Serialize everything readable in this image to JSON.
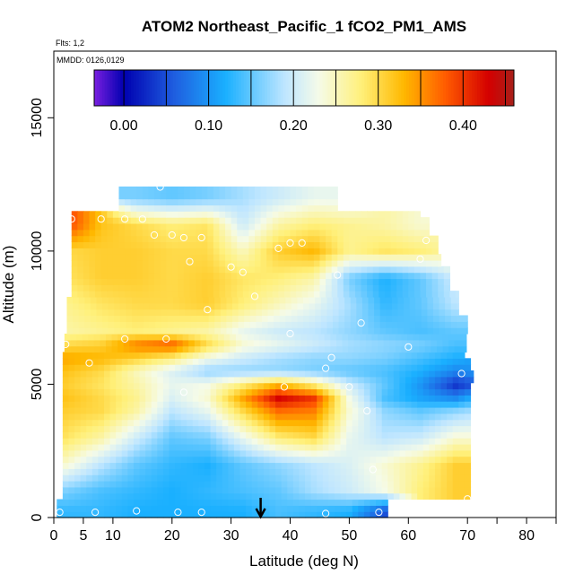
{
  "chart_data": {
    "type": "heatmap",
    "title": "ATOM2 Northeast_Pacific_1 fCO2_PM1_AMS",
    "subtitle_flights": "Flts: 1,2",
    "subtitle_dates": "MMDD: 0126,0129",
    "xlabel": "Latitude (deg N)",
    "ylabel": "Altitude (m)",
    "xlim": [
      0,
      85
    ],
    "ylim": [
      0,
      17500
    ],
    "x_ticks": [
      0,
      5,
      10,
      20,
      30,
      40,
      50,
      60,
      70,
      80
    ],
    "x_minor_ticks": [
      75,
      85
    ],
    "y_ticks": [
      0,
      5000,
      10000,
      15000
    ],
    "colorbar": {
      "min": -0.035,
      "max": 0.46,
      "ticks": [
        0.0,
        0.1,
        0.2,
        0.3,
        0.4
      ],
      "tick_labels": [
        "0.00",
        "0.10",
        "0.20",
        "0.30",
        "0.40"
      ],
      "colors": [
        "#7a1fe0",
        "#0000b0",
        "#1f5fe0",
        "#1ab0ff",
        "#bfe6ff",
        "#f5fbe8",
        "#fff07a",
        "#ffb800",
        "#ff5a00",
        "#d40000",
        "#a8201a"
      ],
      "stops": [
        -0.035,
        0.0,
        0.06,
        0.12,
        0.19,
        0.23,
        0.28,
        0.33,
        0.38,
        0.43,
        0.46
      ]
    },
    "x_nodes": [
      2,
      8,
      14,
      20,
      26,
      32,
      38,
      44,
      50,
      56,
      62,
      68,
      71
    ],
    "alt_nodes": [
      250,
      1000,
      2000,
      3000,
      4000,
      4500,
      5000,
      5500,
      6000,
      6500,
      7000,
      8000,
      9000,
      10000,
      11000,
      12000
    ],
    "values": [
      [
        0.13,
        0.13,
        0.12,
        0.12,
        0.12,
        0.12,
        0.14,
        0.13,
        0.12,
        0.05,
        null,
        null,
        null
      ],
      [
        0.16,
        0.14,
        0.13,
        0.12,
        0.13,
        0.14,
        0.15,
        0.18,
        0.2,
        0.23,
        0.28,
        0.31,
        0.31
      ],
      [
        0.24,
        0.19,
        0.15,
        0.13,
        0.12,
        0.15,
        0.17,
        0.19,
        0.21,
        0.24,
        0.27,
        0.31,
        0.31
      ],
      [
        0.29,
        0.26,
        0.2,
        0.15,
        0.16,
        0.22,
        0.28,
        0.3,
        0.22,
        0.19,
        0.2,
        0.24,
        0.24
      ],
      [
        0.31,
        0.3,
        0.26,
        0.19,
        0.22,
        0.3,
        0.37,
        0.36,
        0.24,
        0.17,
        0.15,
        0.17,
        0.18
      ],
      [
        0.32,
        0.3,
        0.27,
        0.21,
        0.24,
        0.34,
        0.43,
        0.4,
        0.23,
        0.14,
        0.11,
        0.09,
        0.12
      ],
      [
        0.31,
        0.29,
        0.26,
        0.22,
        0.23,
        0.28,
        0.33,
        0.28,
        0.2,
        0.15,
        0.1,
        0.03,
        0.05
      ],
      [
        0.32,
        0.3,
        0.25,
        0.21,
        0.17,
        0.17,
        0.17,
        0.16,
        0.15,
        0.14,
        0.12,
        0.09,
        0.1
      ],
      [
        0.34,
        0.33,
        0.31,
        0.28,
        0.23,
        0.2,
        0.18,
        0.17,
        0.17,
        0.16,
        0.14,
        0.12,
        null
      ],
      [
        0.3,
        0.31,
        0.36,
        0.38,
        0.3,
        0.24,
        0.22,
        0.2,
        0.18,
        0.17,
        0.16,
        0.14,
        null
      ],
      [
        0.26,
        0.27,
        0.28,
        0.27,
        0.26,
        0.22,
        0.2,
        0.19,
        0.17,
        0.15,
        0.14,
        0.15,
        null
      ],
      [
        0.27,
        0.29,
        0.3,
        0.3,
        0.31,
        0.28,
        0.25,
        0.22,
        0.18,
        0.13,
        0.15,
        0.19,
        null
      ],
      [
        0.29,
        0.31,
        0.31,
        0.3,
        0.31,
        0.29,
        0.28,
        0.26,
        0.16,
        0.12,
        0.15,
        0.2,
        null
      ],
      [
        0.3,
        0.31,
        0.31,
        0.3,
        0.3,
        0.25,
        0.31,
        0.33,
        0.27,
        0.29,
        0.28,
        0.26,
        null
      ],
      [
        0.4,
        0.32,
        0.3,
        0.28,
        0.29,
        0.2,
        0.26,
        0.28,
        0.27,
        0.26,
        0.24,
        null,
        null
      ],
      [
        null,
        null,
        0.16,
        0.15,
        0.16,
        0.18,
        0.2,
        0.22,
        0.22,
        null,
        null,
        null,
        null
      ]
    ],
    "samples": [
      {
        "lat": 1,
        "alt": 200
      },
      {
        "lat": 7,
        "alt": 200
      },
      {
        "lat": 14,
        "alt": 250
      },
      {
        "lat": 21,
        "alt": 200
      },
      {
        "lat": 25,
        "alt": 200
      },
      {
        "lat": 46,
        "alt": 150
      },
      {
        "lat": 55,
        "alt": 200
      },
      {
        "lat": 70,
        "alt": 700
      },
      {
        "lat": 54,
        "alt": 1800
      },
      {
        "lat": 53,
        "alt": 4000
      },
      {
        "lat": 22,
        "alt": 4700
      },
      {
        "lat": 39,
        "alt": 4900
      },
      {
        "lat": 50,
        "alt": 4900
      },
      {
        "lat": 6,
        "alt": 5800
      },
      {
        "lat": 46,
        "alt": 5600
      },
      {
        "lat": 47,
        "alt": 6000
      },
      {
        "lat": 69,
        "alt": 5400
      },
      {
        "lat": 2,
        "alt": 6500
      },
      {
        "lat": 12,
        "alt": 6700
      },
      {
        "lat": 19,
        "alt": 6700
      },
      {
        "lat": 40,
        "alt": 6900
      },
      {
        "lat": 60,
        "alt": 6400
      },
      {
        "lat": 52,
        "alt": 7300
      },
      {
        "lat": 26,
        "alt": 7800
      },
      {
        "lat": 34,
        "alt": 8300
      },
      {
        "lat": 48,
        "alt": 9100
      },
      {
        "lat": 23,
        "alt": 9600
      },
      {
        "lat": 30,
        "alt": 9400
      },
      {
        "lat": 32,
        "alt": 9200
      },
      {
        "lat": 38,
        "alt": 10100
      },
      {
        "lat": 40,
        "alt": 10300
      },
      {
        "lat": 42,
        "alt": 10300
      },
      {
        "lat": 62,
        "alt": 9700
      },
      {
        "lat": 63,
        "alt": 10400
      },
      {
        "lat": 17,
        "alt": 10600
      },
      {
        "lat": 20,
        "alt": 10600
      },
      {
        "lat": 22,
        "alt": 10500
      },
      {
        "lat": 25,
        "alt": 10500
      },
      {
        "lat": 3,
        "alt": 11200
      },
      {
        "lat": 8,
        "alt": 11200
      },
      {
        "lat": 12,
        "alt": 11200
      },
      {
        "lat": 15,
        "alt": 11200
      },
      {
        "lat": 18,
        "alt": 12400
      }
    ],
    "marker_lat": 35,
    "grid": false
  }
}
